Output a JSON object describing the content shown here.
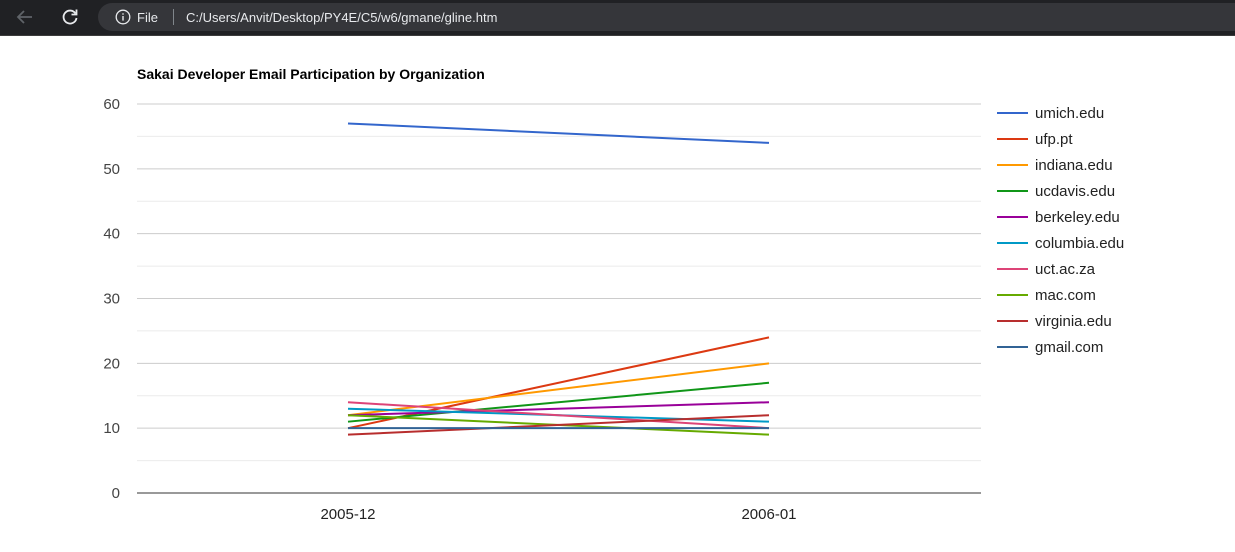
{
  "browser": {
    "site_label": "File",
    "url": "C:/Users/Anvit/Desktop/PY4E/C5/w6/gmane/gline.htm"
  },
  "colors": {
    "browser_bar": "#202124",
    "address_bar": "#35363a"
  },
  "chart_data": {
    "type": "line",
    "title": "Sakai Developer Email Participation by Organization",
    "xlabel": "",
    "ylabel": "",
    "categories": [
      "2005-12",
      "2006-01"
    ],
    "ylim": [
      0,
      60
    ],
    "yticks": [
      "0",
      "10",
      "20",
      "30",
      "40",
      "50",
      "60"
    ],
    "grid": true,
    "legend_position": "right",
    "series": [
      {
        "name": "umich.edu",
        "color": "#3366cc",
        "values": [
          57,
          54
        ]
      },
      {
        "name": "ufp.pt",
        "color": "#dc3912",
        "values": [
          10,
          24
        ]
      },
      {
        "name": "indiana.edu",
        "color": "#ff9900",
        "values": [
          12,
          20
        ]
      },
      {
        "name": "ucdavis.edu",
        "color": "#109618",
        "values": [
          11,
          17
        ]
      },
      {
        "name": "berkeley.edu",
        "color": "#990099",
        "values": [
          12,
          14
        ]
      },
      {
        "name": "columbia.edu",
        "color": "#0099c6",
        "values": [
          13,
          11
        ]
      },
      {
        "name": "uct.ac.za",
        "color": "#dd4477",
        "values": [
          14,
          10
        ]
      },
      {
        "name": "mac.com",
        "color": "#66aa00",
        "values": [
          12,
          9
        ]
      },
      {
        "name": "virginia.edu",
        "color": "#b82e2e",
        "values": [
          9,
          12
        ]
      },
      {
        "name": "gmail.com",
        "color": "#316395",
        "values": [
          10,
          10
        ]
      }
    ]
  }
}
